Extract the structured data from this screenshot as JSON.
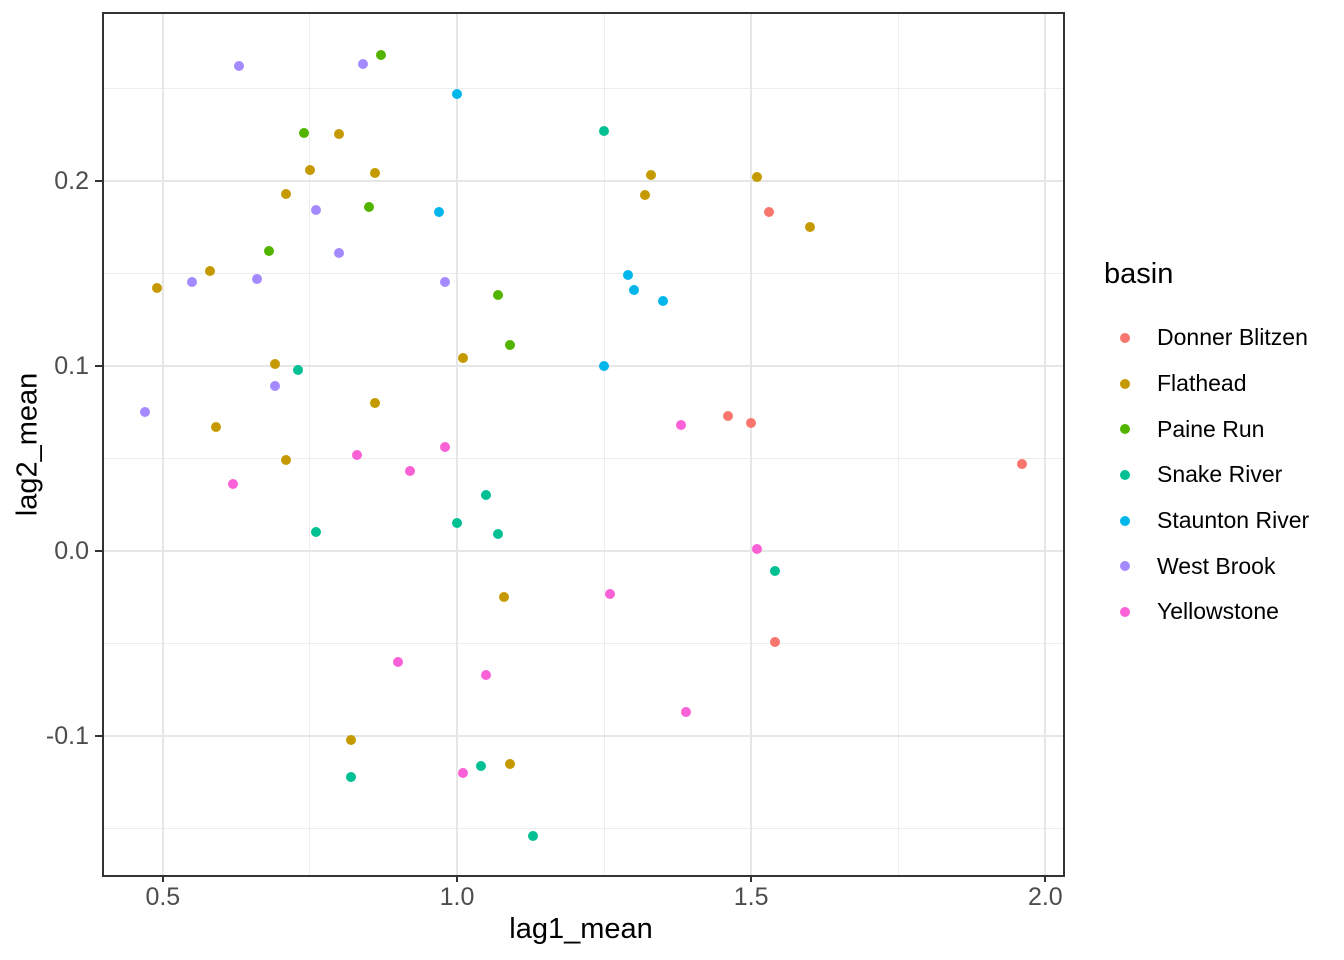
{
  "chart_data": {
    "type": "scatter",
    "title": "",
    "xlabel": "lag1_mean",
    "ylabel": "lag2_mean",
    "legend_title": "basin",
    "legend_position": "right",
    "grid": "major+minor",
    "panel_background": "#ffffff",
    "gridline_color": "#e6e6e6",
    "tick_label_color": "#4d4d4d",
    "xlim": [
      0.4,
      2.03
    ],
    "ylim": [
      -0.175,
      0.29
    ],
    "x_ticks": [
      0.5,
      1.0,
      1.5,
      2.0
    ],
    "x_tick_labels": [
      "0.5",
      "1.0",
      "1.5",
      "2.0"
    ],
    "x_minor_ticks": [
      0.75,
      1.25,
      1.75
    ],
    "y_ticks": [
      0.2,
      0.1,
      0.0,
      -0.1
    ],
    "y_tick_labels": [
      "0.2",
      "0.1",
      "0.0",
      "-0.1"
    ],
    "y_minor_ticks": [
      0.25,
      0.15,
      0.05,
      -0.05,
      -0.15
    ],
    "series": [
      {
        "name": "Donner Blitzen",
        "color": "#F8766D",
        "points": [
          [
            1.46,
            0.073
          ],
          [
            1.5,
            0.069
          ],
          [
            1.53,
            0.183
          ],
          [
            1.96,
            0.047
          ],
          [
            1.54,
            -0.049
          ]
        ]
      },
      {
        "name": "Flathead",
        "color": "#C49A00",
        "points": [
          [
            0.49,
            0.142
          ],
          [
            0.58,
            0.151
          ],
          [
            0.59,
            0.067
          ],
          [
            0.69,
            0.101
          ],
          [
            0.71,
            0.193
          ],
          [
            0.71,
            0.049
          ],
          [
            0.75,
            0.206
          ],
          [
            0.8,
            0.225
          ],
          [
            0.82,
            -0.102
          ],
          [
            0.86,
            0.204
          ],
          [
            0.86,
            0.08
          ],
          [
            1.01,
            0.104
          ],
          [
            1.08,
            -0.025
          ],
          [
            1.09,
            -0.115
          ],
          [
            1.32,
            0.192
          ],
          [
            1.33,
            0.203
          ],
          [
            1.51,
            0.202
          ],
          [
            1.6,
            0.175
          ]
        ]
      },
      {
        "name": "Paine Run",
        "color": "#53B400",
        "points": [
          [
            0.68,
            0.162
          ],
          [
            0.74,
            0.226
          ],
          [
            0.85,
            0.186
          ],
          [
            0.87,
            0.268
          ],
          [
            1.07,
            0.138
          ],
          [
            1.09,
            0.111
          ]
        ]
      },
      {
        "name": "Snake River",
        "color": "#00C094",
        "points": [
          [
            0.73,
            0.098
          ],
          [
            0.76,
            0.01
          ],
          [
            0.82,
            -0.122
          ],
          [
            1.0,
            0.015
          ],
          [
            1.04,
            -0.116
          ],
          [
            1.05,
            0.03
          ],
          [
            1.07,
            0.009
          ],
          [
            1.13,
            -0.154
          ],
          [
            1.25,
            0.227
          ],
          [
            1.54,
            -0.011
          ]
        ]
      },
      {
        "name": "Staunton River",
        "color": "#00B6EB",
        "points": [
          [
            0.97,
            0.183
          ],
          [
            1.0,
            0.247
          ],
          [
            1.25,
            0.1
          ],
          [
            1.29,
            0.149
          ],
          [
            1.3,
            0.141
          ],
          [
            1.35,
            0.135
          ]
        ]
      },
      {
        "name": "West Brook",
        "color": "#A58AFF",
        "points": [
          [
            0.47,
            0.075
          ],
          [
            0.55,
            0.145
          ],
          [
            0.63,
            0.262
          ],
          [
            0.66,
            0.147
          ],
          [
            0.69,
            0.089
          ],
          [
            0.76,
            0.184
          ],
          [
            0.8,
            0.161
          ],
          [
            0.84,
            0.263
          ],
          [
            0.98,
            0.145
          ]
        ]
      },
      {
        "name": "Yellowstone",
        "color": "#FB61D7",
        "points": [
          [
            0.62,
            0.036
          ],
          [
            0.83,
            0.052
          ],
          [
            0.9,
            -0.06
          ],
          [
            0.92,
            0.043
          ],
          [
            0.98,
            0.056
          ],
          [
            1.01,
            -0.12
          ],
          [
            1.05,
            -0.067
          ],
          [
            1.26,
            -0.023
          ],
          [
            1.38,
            0.068
          ],
          [
            1.39,
            -0.087
          ],
          [
            1.51,
            0.001
          ]
        ]
      }
    ]
  }
}
